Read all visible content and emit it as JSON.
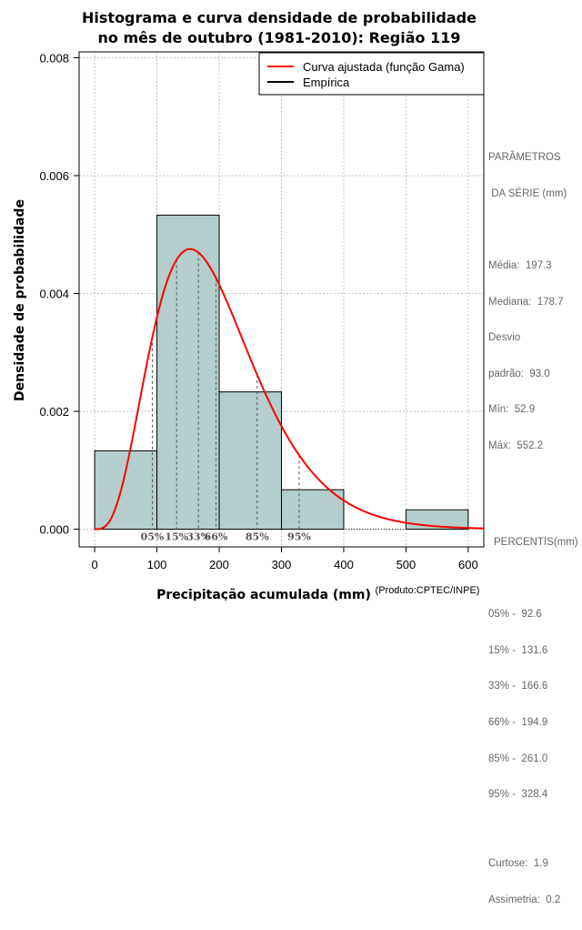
{
  "chart_data": {
    "type": "bar",
    "title_line1": "Histograma e curva densidade de probabilidade",
    "title_line2": "no mês de outubro (1981-2010): Região 119",
    "xlabel": "Precipitação acumulada (mm)",
    "ylabel": "Densidade de probabilidade",
    "credit": "(Produto:CPTEC/INPE)",
    "xlim": [
      -25,
      625
    ],
    "ylim": [
      -0.0003,
      0.0081
    ],
    "x_ticks": [
      0,
      100,
      200,
      300,
      400,
      500,
      600
    ],
    "x_tick_labels": [
      "0",
      "100",
      "200",
      "300",
      "400",
      "500",
      "600"
    ],
    "y_ticks": [
      0.0,
      0.002,
      0.004,
      0.006,
      0.008
    ],
    "y_tick_labels": [
      "0.000",
      "0.002",
      "0.004",
      "0.006",
      "0.008"
    ],
    "grid": true,
    "bins": [
      {
        "from": 0,
        "to": 100,
        "density": 0.00133
      },
      {
        "from": 100,
        "to": 200,
        "density": 0.00533
      },
      {
        "from": 200,
        "to": 300,
        "density": 0.00233
      },
      {
        "from": 300,
        "to": 400,
        "density": 0.00067
      },
      {
        "from": 400,
        "to": 500,
        "density": 0.0
      },
      {
        "from": 500,
        "to": 600,
        "density": 0.00033
      }
    ],
    "gamma_fit": {
      "shape": 4.5,
      "scale": 43.8
    },
    "legend": {
      "position": "top-right",
      "entries": [
        {
          "label": "Curva ajustada (função Gama)",
          "color": "#ff0000"
        },
        {
          "label": "Empírica",
          "color": "#000000"
        }
      ]
    },
    "percentile_marks": [
      {
        "label": "05%",
        "x": 92.6
      },
      {
        "label": "15%",
        "x": 131.6
      },
      {
        "label": "33%",
        "x": 166.6
      },
      {
        "label": "66%",
        "x": 194.9
      },
      {
        "label": "85%",
        "x": 261.0
      },
      {
        "label": "95%",
        "x": 328.4
      }
    ]
  },
  "colors": {
    "bar_fill": "#b4cdcd",
    "curve": "#ff0000",
    "grid": "#b3b3b3",
    "side_text": "#666666",
    "percentile_line": "#555555"
  },
  "side_panel": {
    "params_title1": "PARÂMETROS",
    "params_title2": " DA SÉRIE (mm)",
    "media": "Média:  197.3",
    "mediana": "Mediana:  178.7",
    "desvio1": "Desvio",
    "desvio2": "padrão:  93.0",
    "min": "Mín:  52.9",
    "max": "Máx:  552.2",
    "pct_title": "PERCENTIS(mm)",
    "p05": "05% -  92.6",
    "p15": "15% -  131.6",
    "p33": "33% -  166.6",
    "p66": "66% -  194.9",
    "p85": "85% -  261.0",
    "p95": "95% -  328.4",
    "curtose": "Curtose:  1.9",
    "assimetria": "Assimetria:  0.2"
  }
}
